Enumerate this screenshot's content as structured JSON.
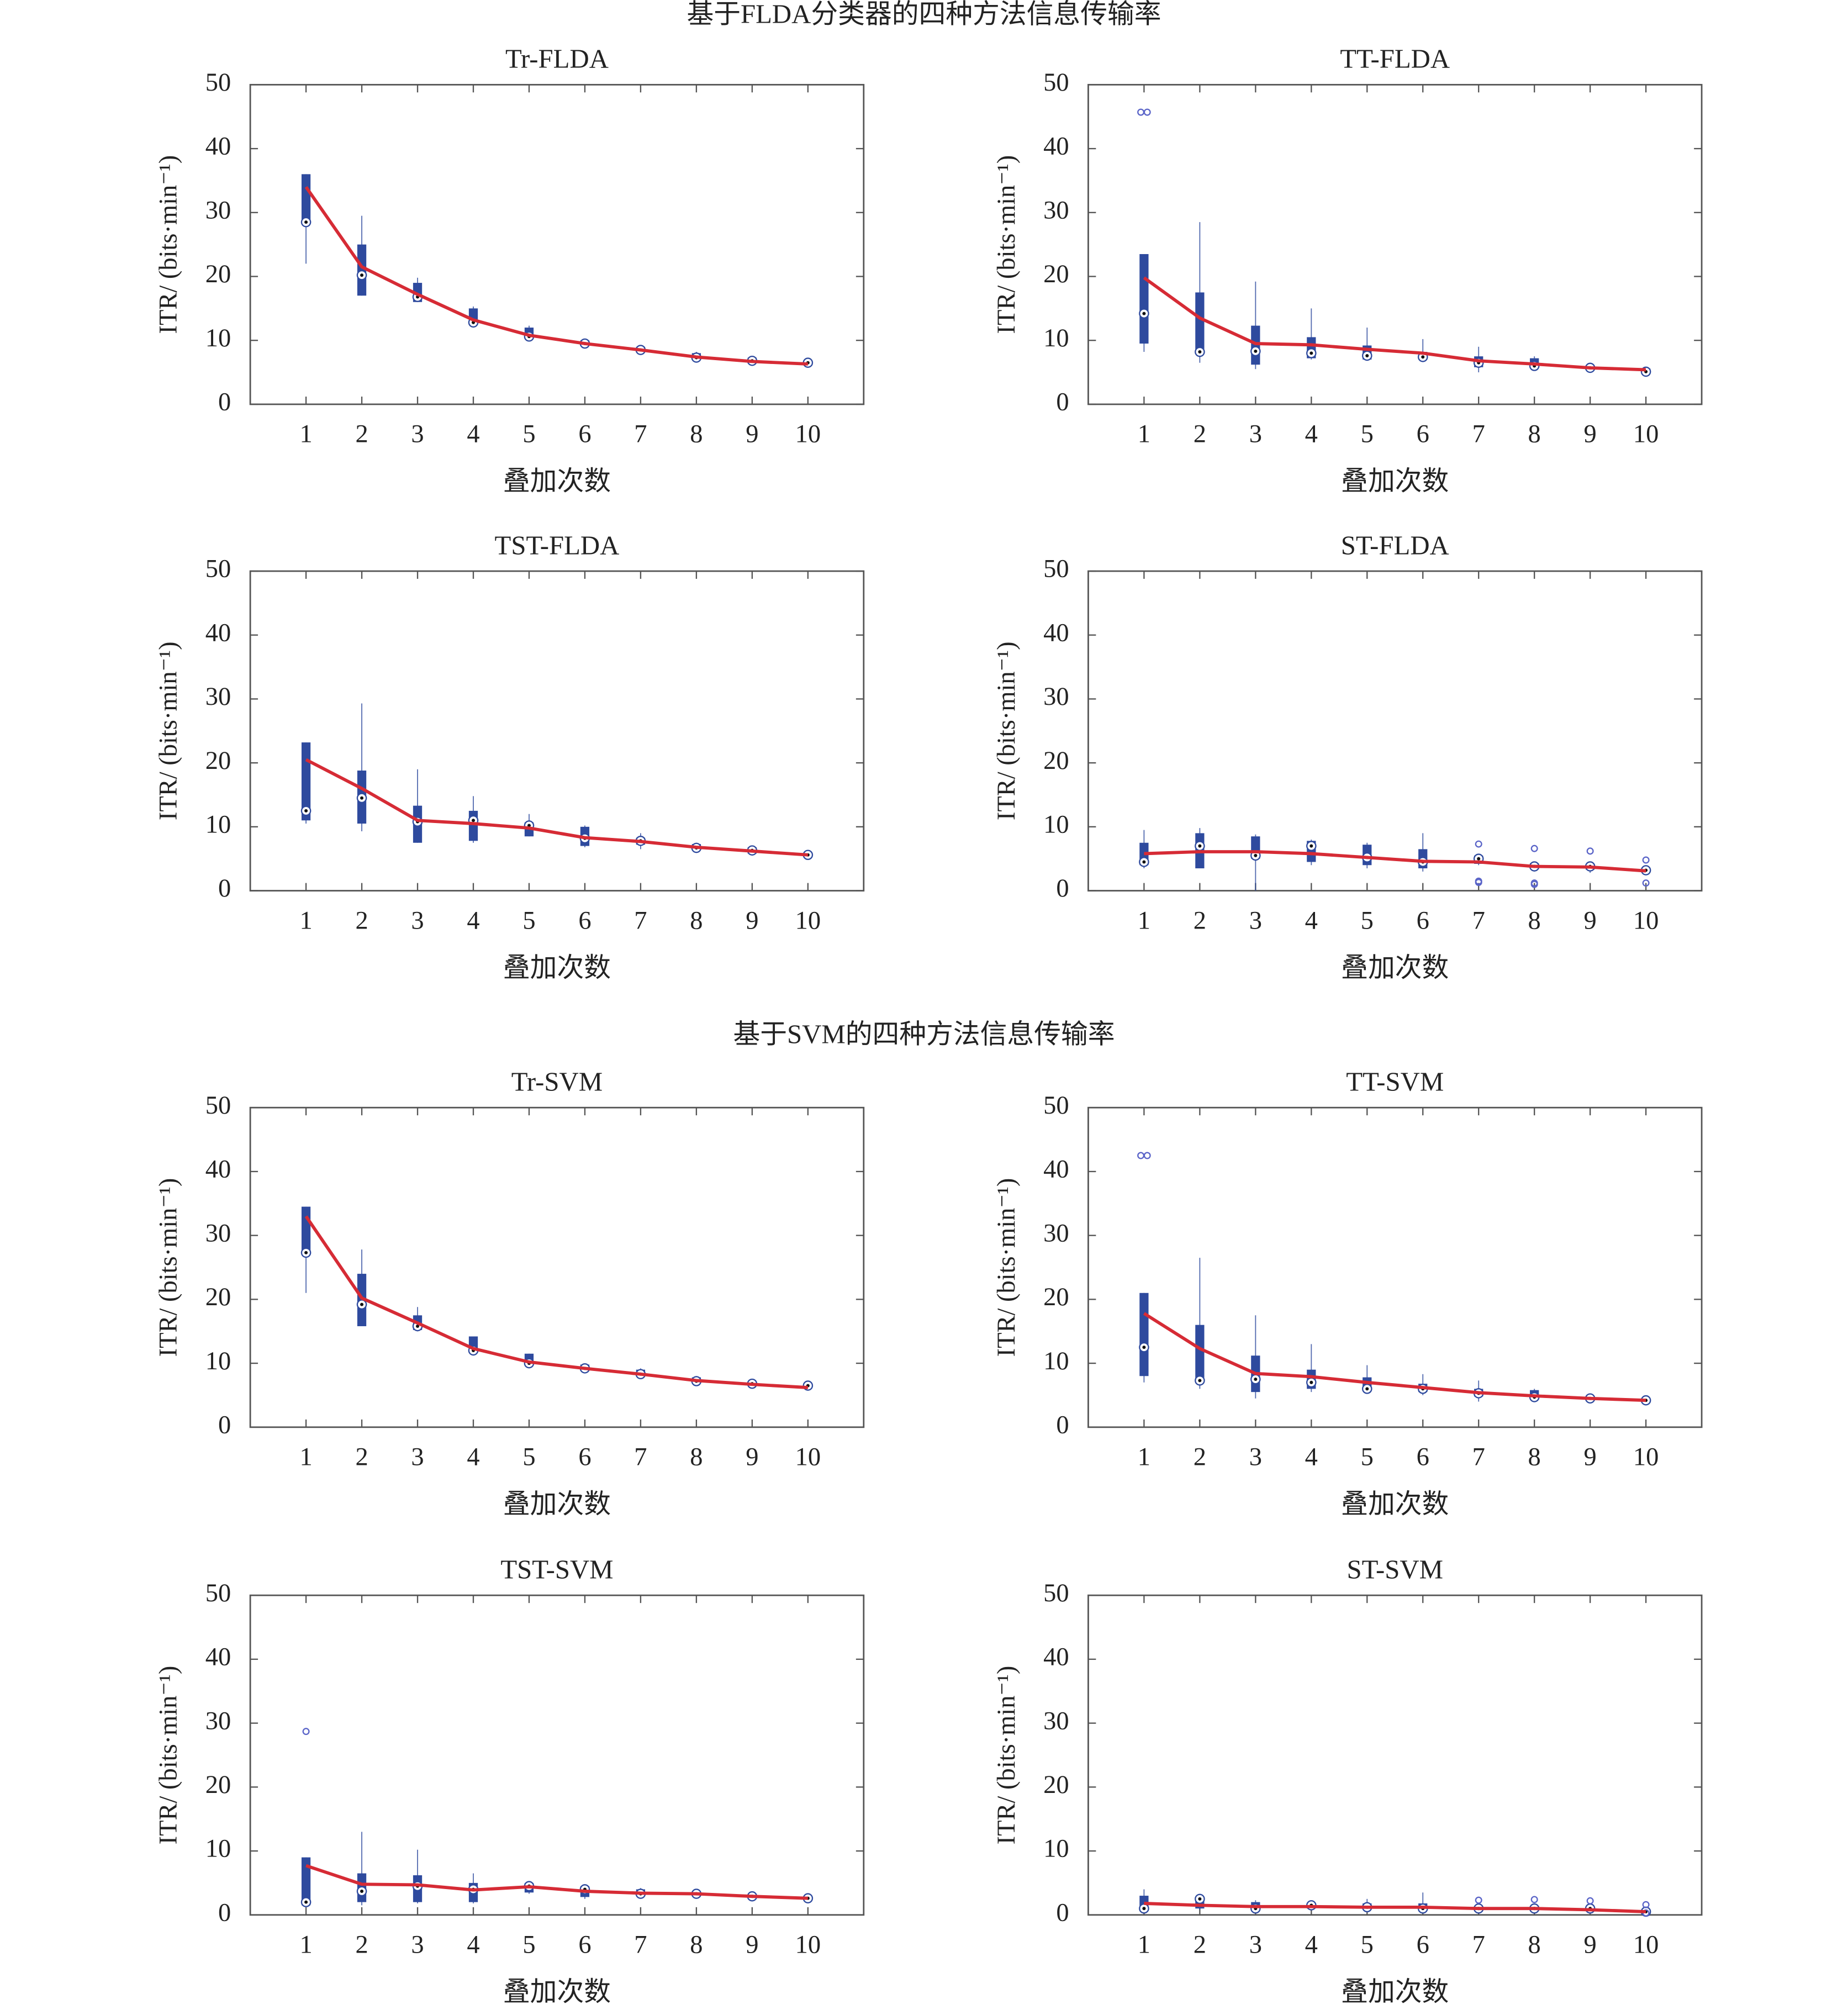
{
  "headings": [
    "基于FLDA分类器的四种方法信息传输率",
    "基于SVM的四种方法信息传输率"
  ],
  "chart_data": [
    {
      "type": "box",
      "title": "Tr-FLDA",
      "xlabel": "叠加次数",
      "ylabel": "ITR/ (bits·min⁻¹)",
      "categories": [
        "1",
        "2",
        "3",
        "4",
        "5",
        "6",
        "7",
        "8",
        "9",
        "10"
      ],
      "ylim": [
        0,
        50
      ],
      "yticks": [
        0,
        10,
        20,
        30,
        40,
        50
      ],
      "box_color": "#2e4a9e",
      "line_color": "#d62b35",
      "medians": [
        28.5,
        20.2,
        16.8,
        12.8,
        10.6,
        9.5,
        8.5,
        7.3,
        6.8,
        6.5
      ],
      "q1": [
        28.5,
        17,
        16,
        12.5,
        10.2,
        9.2,
        8.2,
        7.0,
        6.5,
        6.2
      ],
      "q3": [
        36,
        25,
        19,
        15,
        12,
        10,
        9,
        8,
        7.3,
        6.8
      ],
      "whisker_low": [
        22,
        17,
        16,
        12.3,
        10,
        8.8,
        8,
        7,
        6.5,
        6
      ],
      "whisker_high": [
        36,
        29.5,
        19.8,
        15.3,
        12.3,
        10.2,
        9.2,
        8.2,
        7.3,
        6.8
      ],
      "outliers": [
        [],
        [],
        [],
        [],
        [],
        [],
        [],
        [],
        [],
        []
      ],
      "means": [
        34,
        21.5,
        17.2,
        13.2,
        10.8,
        9.5,
        8.5,
        7.4,
        6.7,
        6.3
      ]
    },
    {
      "type": "box",
      "title": "TT-FLDA",
      "xlabel": "叠加次数",
      "ylabel": "ITR/ (bits·min⁻¹)",
      "categories": [
        "1",
        "2",
        "3",
        "4",
        "5",
        "6",
        "7",
        "8",
        "9",
        "10"
      ],
      "ylim": [
        0,
        50
      ],
      "yticks": [
        0,
        10,
        20,
        30,
        40,
        50
      ],
      "box_color": "#2e4a9e",
      "line_color": "#d62b35",
      "medians": [
        14.2,
        8.2,
        8.3,
        8,
        7.6,
        7.4,
        6.5,
        6,
        5.7,
        5.1
      ],
      "q1": [
        9.5,
        8,
        6.2,
        7.2,
        7,
        7,
        5.8,
        5.9,
        5.5,
        5
      ],
      "q3": [
        23.5,
        17.5,
        12.3,
        10.5,
        9.2,
        8.2,
        7.5,
        7.2,
        6,
        5.6
      ],
      "whisker_low": [
        8.2,
        6.5,
        5.5,
        7,
        7,
        6.8,
        5,
        5.5,
        5.3,
        4.8
      ],
      "whisker_high": [
        23.5,
        28.5,
        19.2,
        15,
        12,
        10.2,
        9,
        7.5,
        6.5,
        5.8
      ],
      "outliers": [
        [
          45.7,
          45.7
        ],
        [],
        [],
        [],
        [],
        [],
        [],
        [],
        [],
        []
      ],
      "means": [
        19.8,
        13.5,
        9.5,
        9.3,
        8.6,
        8,
        6.8,
        6.3,
        5.7,
        5.4
      ]
    },
    {
      "type": "box",
      "title": "TST-FLDA",
      "xlabel": "叠加次数",
      "ylabel": "ITR/ (bits·min⁻¹)",
      "categories": [
        "1",
        "2",
        "3",
        "4",
        "5",
        "6",
        "7",
        "8",
        "9",
        "10"
      ],
      "ylim": [
        0,
        50
      ],
      "yticks": [
        0,
        10,
        20,
        30,
        40,
        50
      ],
      "box_color": "#2e4a9e",
      "line_color": "#d62b35",
      "medians": [
        12.5,
        14.5,
        10.8,
        11,
        10.2,
        8.2,
        7.8,
        6.7,
        6.3,
        5.6
      ],
      "q1": [
        11,
        10.5,
        7.5,
        7.8,
        8.5,
        7,
        7.2,
        6.3,
        5.8,
        5.4
      ],
      "q3": [
        23.2,
        18.8,
        13.3,
        12.5,
        10.7,
        10,
        8.3,
        7.3,
        6.8,
        6
      ],
      "whisker_low": [
        10.5,
        9.3,
        7.5,
        7.5,
        8.5,
        6.8,
        6.5,
        6,
        5.5,
        5.2
      ],
      "whisker_high": [
        23.2,
        29.3,
        19,
        14.8,
        12,
        10.2,
        9,
        7.5,
        7,
        6
      ],
      "outliers": [
        [],
        [],
        [],
        [],
        [],
        [],
        [],
        [],
        [],
        []
      ],
      "means": [
        20.5,
        16,
        11,
        10.5,
        9.8,
        8.3,
        7.7,
        6.8,
        6.2,
        5.6
      ]
    },
    {
      "type": "box",
      "title": "ST-FLDA",
      "xlabel": "叠加次数",
      "ylabel": "ITR/ (bits·min⁻¹)",
      "categories": [
        "1",
        "2",
        "3",
        "4",
        "5",
        "6",
        "7",
        "8",
        "9",
        "10"
      ],
      "ylim": [
        0,
        50
      ],
      "yticks": [
        0,
        10,
        20,
        30,
        40,
        50
      ],
      "box_color": "#2e4a9e",
      "line_color": "#d62b35",
      "medians": [
        4.5,
        7,
        5.5,
        7,
        5.2,
        4.5,
        5,
        3.8,
        3.8,
        3.2
      ],
      "q1": [
        4,
        3.5,
        5,
        4.5,
        4,
        3.5,
        4.2,
        3.5,
        3.3,
        3
      ],
      "q3": [
        7.5,
        9,
        8.5,
        7.8,
        7.2,
        6.5,
        5.5,
        4.3,
        4.2,
        3.6
      ],
      "whisker_low": [
        3.5,
        3.5,
        0,
        4,
        3.5,
        3,
        4,
        3,
        2.8,
        2.8
      ],
      "whisker_high": [
        9.5,
        9.8,
        8.8,
        8,
        7.5,
        9,
        5.8,
        4.5,
        4.5,
        4
      ],
      "outliers": [
        [],
        [],
        [],
        [],
        [],
        [],
        [
          7.3,
          1.5,
          1.3
        ],
        [
          6.6,
          1,
          1.2
        ],
        [
          6.2
        ],
        [
          4.8,
          1.2
        ]
      ],
      "means": [
        5.8,
        6.1,
        6.1,
        5.8,
        5.2,
        4.6,
        4.5,
        3.8,
        3.7,
        3.1
      ]
    },
    {
      "type": "box",
      "title": "Tr-SVM",
      "xlabel": "叠加次数",
      "ylabel": "ITR/ (bits·min⁻¹)",
      "categories": [
        "1",
        "2",
        "3",
        "4",
        "5",
        "6",
        "7",
        "8",
        "9",
        "10"
      ],
      "ylim": [
        0,
        50
      ],
      "yticks": [
        0,
        10,
        20,
        30,
        40,
        50
      ],
      "box_color": "#2e4a9e",
      "line_color": "#d62b35",
      "medians": [
        27.3,
        19.2,
        15.8,
        12,
        10,
        9.2,
        8.3,
        7.2,
        6.8,
        6.5
      ],
      "q1": [
        27.5,
        15.8,
        15.2,
        11.8,
        9.8,
        9,
        8,
        7,
        6.5,
        6.2
      ],
      "q3": [
        34.5,
        24,
        17.5,
        14.2,
        11.5,
        9.8,
        9,
        7.8,
        7,
        6.8
      ],
      "whisker_low": [
        21,
        15.8,
        15,
        11.5,
        9.5,
        8.8,
        7.8,
        6.8,
        6.3,
        6
      ],
      "whisker_high": [
        34.5,
        27.8,
        18.8,
        14.2,
        11.5,
        9.8,
        9.2,
        8,
        7.2,
        7
      ],
      "outliers": [
        [],
        [],
        [],
        [],
        [],
        [],
        [],
        [],
        [],
        []
      ],
      "means": [
        33,
        20.2,
        16.3,
        12.3,
        10.2,
        9.2,
        8.3,
        7.3,
        6.7,
        6.2
      ]
    },
    {
      "type": "box",
      "title": "TT-SVM",
      "xlabel": "叠加次数",
      "ylabel": "ITR/ (bits·min⁻¹)",
      "categories": [
        "1",
        "2",
        "3",
        "4",
        "5",
        "6",
        "7",
        "8",
        "9",
        "10"
      ],
      "ylim": [
        0,
        50
      ],
      "yticks": [
        0,
        10,
        20,
        30,
        40,
        50
      ],
      "box_color": "#2e4a9e",
      "line_color": "#d62b35",
      "medians": [
        12.5,
        7.3,
        7.5,
        7,
        6,
        6,
        5.3,
        4.7,
        4.5,
        4.2
      ],
      "q1": [
        8,
        7,
        5.5,
        6,
        6,
        5.5,
        4.8,
        4.5,
        4.3,
        4
      ],
      "q3": [
        21,
        16,
        11.2,
        9,
        7.8,
        6.8,
        6,
        5.8,
        4.8,
        4.5
      ],
      "whisker_low": [
        7,
        6,
        4.5,
        5.5,
        5.8,
        5,
        4,
        4.2,
        4.2,
        3.8
      ],
      "whisker_high": [
        21,
        26.5,
        17.5,
        13,
        9.7,
        8.3,
        7.3,
        6,
        5,
        4.7
      ],
      "outliers": [
        [
          42.5,
          42.5
        ],
        [],
        [],
        [],
        [],
        [],
        [],
        [],
        [],
        []
      ],
      "means": [
        17.8,
        12.3,
        8.4,
        7.9,
        7,
        6.2,
        5.4,
        4.9,
        4.5,
        4.2
      ]
    },
    {
      "type": "box",
      "title": "TST-SVM",
      "xlabel": "叠加次数",
      "ylabel": "ITR/ (bits·min⁻¹)",
      "categories": [
        "1",
        "2",
        "3",
        "4",
        "5",
        "6",
        "7",
        "8",
        "9",
        "10"
      ],
      "ylim": [
        0,
        50
      ],
      "yticks": [
        0,
        10,
        20,
        30,
        40,
        50
      ],
      "box_color": "#2e4a9e",
      "line_color": "#d62b35",
      "medians": [
        2,
        3.7,
        4.5,
        4,
        4.5,
        4,
        3.3,
        3.3,
        2.9,
        2.6
      ],
      "q1": [
        1.5,
        2,
        2,
        2,
        3.5,
        2.8,
        3,
        3,
        2.7,
        2.5
      ],
      "q3": [
        9,
        6.5,
        6.2,
        5,
        5,
        4.5,
        4,
        3.5,
        3.1,
        2.9
      ],
      "whisker_low": [
        1.5,
        1.5,
        1.8,
        1.8,
        3.3,
        2.5,
        2.8,
        2.8,
        2.5,
        2.3
      ],
      "whisker_high": [
        9,
        13,
        10.2,
        6.5,
        5.3,
        4.8,
        4.2,
        3.8,
        3.3,
        3
      ],
      "outliers": [
        [
          28.7
        ],
        [],
        [],
        [],
        [],
        [],
        [],
        [],
        [],
        []
      ],
      "means": [
        7.7,
        4.8,
        4.7,
        3.9,
        4.4,
        3.7,
        3.4,
        3.3,
        2.9,
        2.6
      ]
    },
    {
      "type": "box",
      "title": "ST-SVM",
      "xlabel": "叠加次数",
      "ylabel": "ITR/ (bits·min⁻¹)",
      "categories": [
        "1",
        "2",
        "3",
        "4",
        "5",
        "6",
        "7",
        "8",
        "9",
        "10"
      ],
      "ylim": [
        0,
        50
      ],
      "yticks": [
        0,
        10,
        20,
        30,
        40,
        50
      ],
      "box_color": "#2e4a9e",
      "line_color": "#d62b35",
      "medians": [
        1,
        2.5,
        1,
        1.5,
        1.2,
        1,
        1,
        1,
        1,
        0.5
      ],
      "q1": [
        1,
        1,
        0.8,
        1,
        1,
        0.8,
        0.8,
        0.8,
        0.8,
        0.3
      ],
      "q3": [
        3,
        2.8,
        2,
        1.8,
        1.8,
        1.8,
        1.2,
        1.2,
        1,
        0.8
      ],
      "whisker_low": [
        0.8,
        0.8,
        0.5,
        0.8,
        0.8,
        0.5,
        0.5,
        0.5,
        0.5,
        0
      ],
      "whisker_high": [
        4,
        3,
        2.3,
        2,
        2.5,
        3.5,
        1.5,
        1.5,
        1.2,
        1
      ],
      "outliers": [
        [],
        [],
        [],
        [],
        [],
        [],
        [
          2.3
        ],
        [
          2.4
        ],
        [
          2.2
        ],
        [
          1.6,
          0.3
        ]
      ],
      "means": [
        1.8,
        1.5,
        1.3,
        1.3,
        1.2,
        1.2,
        1.0,
        1.0,
        0.8,
        0.5
      ]
    }
  ]
}
